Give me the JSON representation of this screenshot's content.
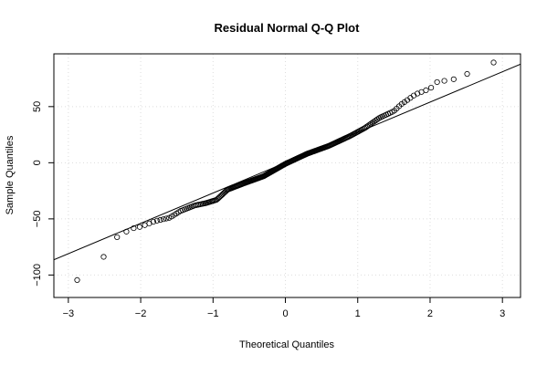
{
  "chart_data": {
    "type": "scatter",
    "title": "Residual Normal Q-Q Plot",
    "xlabel": "Theoretical Quantiles",
    "ylabel": "Sample Quantiles",
    "xlim": [
      -3.2,
      3.25
    ],
    "ylim": [
      -120,
      97
    ],
    "x_ticks": [
      -3,
      -2,
      -1,
      0,
      1,
      2,
      3
    ],
    "x_tick_labels": [
      "−3",
      "−2",
      "−1",
      "0",
      "1",
      "2",
      "3"
    ],
    "y_ticks": [
      -100,
      -50,
      0,
      50
    ],
    "y_tick_labels": [
      "−100",
      "−50",
      "0",
      "50"
    ],
    "grid": true,
    "legend": "none",
    "reference_line": {
      "slope": 27,
      "intercept": 0
    },
    "sample_size": 250,
    "quantile_anchors": [
      [
        -3.0,
        -113
      ],
      [
        -2.6,
        -85
      ],
      [
        -2.45,
        -83
      ],
      [
        -2.35,
        -67
      ],
      [
        -2.25,
        -64
      ],
      [
        -2.15,
        -59
      ],
      [
        -2.0,
        -57
      ],
      [
        -1.8,
        -52
      ],
      [
        -1.6,
        -49
      ],
      [
        -1.45,
        -43
      ],
      [
        -1.25,
        -38
      ],
      [
        -1.1,
        -36
      ],
      [
        -0.95,
        -33
      ],
      [
        -0.8,
        -24
      ],
      [
        -0.6,
        -19
      ],
      [
        -0.3,
        -12
      ],
      [
        0,
        -1
      ],
      [
        0.3,
        8
      ],
      [
        0.6,
        15
      ],
      [
        0.9,
        24
      ],
      [
        1.1,
        31
      ],
      [
        1.3,
        40
      ],
      [
        1.5,
        46
      ],
      [
        1.6,
        52
      ],
      [
        1.8,
        61
      ],
      [
        2.0,
        66
      ],
      [
        2.1,
        72
      ],
      [
        2.2,
        73
      ],
      [
        2.3,
        74
      ],
      [
        2.45,
        76
      ],
      [
        2.65,
        86
      ],
      [
        3.0,
        91
      ]
    ],
    "colors": {
      "points": "#000000",
      "line": "#000000",
      "grid": "#dddddd",
      "axes": "#000000"
    }
  }
}
